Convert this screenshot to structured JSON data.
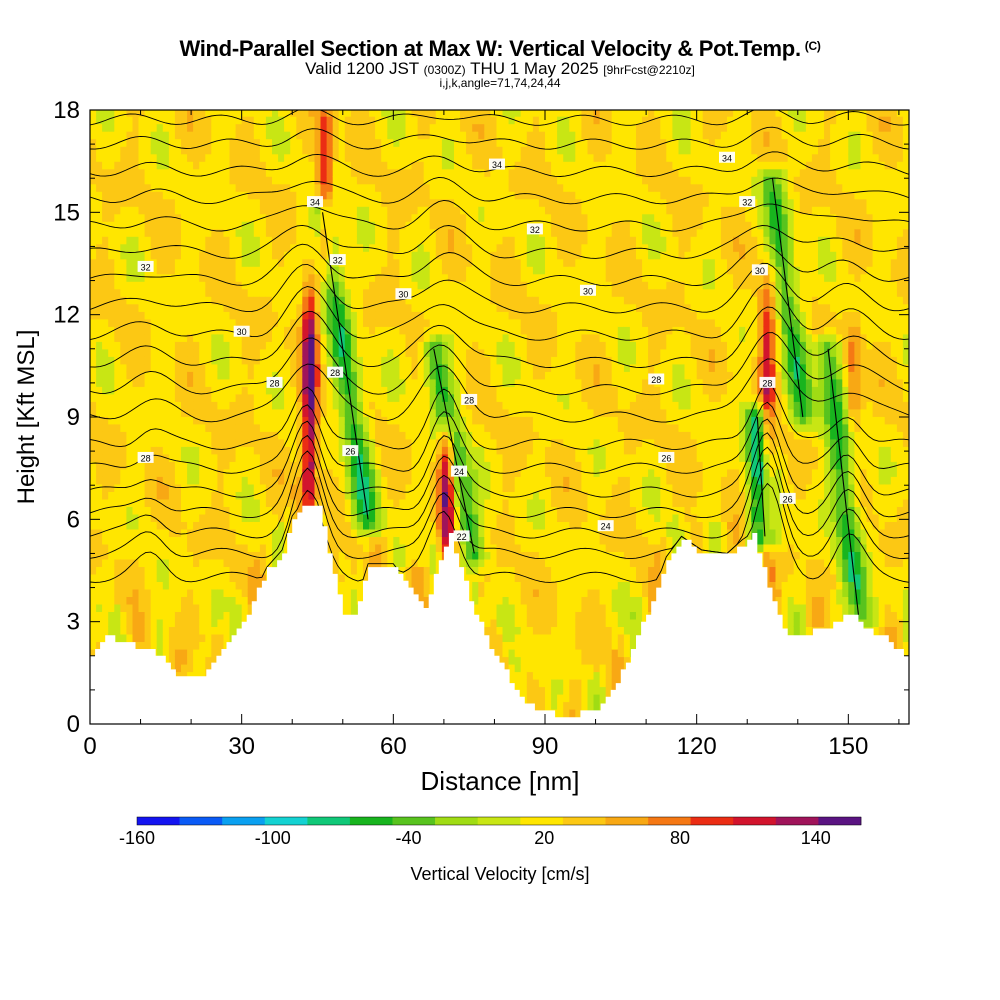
{
  "header": {
    "title": "Wind-Parallel Section at Max W: Vertical Velocity & Pot.Temp.",
    "title_tag": "(C)",
    "valid_prefix": "Valid 1200 JST",
    "valid_utc": "(0300Z)",
    "valid_date": "THU 1 May 2025",
    "forecast_info": "[9hrFcst@2210z]",
    "indices": "i,j,k,angle=71,74,24,44"
  },
  "chart_data": {
    "type": "heatmap",
    "xlabel": "Distance [nm]",
    "ylabel": "Height [Kft MSL]",
    "xlim": [
      0,
      162
    ],
    "ylim": [
      0,
      18
    ],
    "xticks": [
      0,
      30,
      60,
      90,
      120,
      150
    ],
    "yticks": [
      0,
      3,
      6,
      9,
      12,
      15,
      18
    ],
    "colorbar": {
      "label": "Vertical Velocity [cm/s]",
      "tick_labels": [
        "-160",
        "-100",
        "-40",
        "20",
        "80",
        "140"
      ],
      "tick_values": [
        -160,
        -100,
        -40,
        20,
        80,
        140
      ],
      "range": [
        -160,
        160
      ],
      "colors": [
        "#1414f0",
        "#0a5af5",
        "#0aa0f0",
        "#14d2d2",
        "#10c878",
        "#18b41e",
        "#58c31e",
        "#a0dc14",
        "#c8e614",
        "#ffe600",
        "#fcc814",
        "#f8a814",
        "#f57814",
        "#eb2d14",
        "#d2142d",
        "#a0145a",
        "#5a1482"
      ]
    },
    "terrain_heights_kft": [
      [
        0,
        2.0
      ],
      [
        3,
        2.6
      ],
      [
        14,
        2.0
      ],
      [
        17,
        1.3
      ],
      [
        22,
        1.3
      ],
      [
        26,
        2.2
      ],
      [
        30,
        3.0
      ],
      [
        35,
        4.5
      ],
      [
        38,
        5.0
      ],
      [
        40,
        6.0
      ],
      [
        42,
        6.4
      ],
      [
        45,
        6.4
      ],
      [
        47,
        5.0
      ],
      [
        50,
        3.3
      ],
      [
        52,
        3.2
      ],
      [
        55,
        4.6
      ],
      [
        60,
        4.6
      ],
      [
        64,
        3.8
      ],
      [
        66,
        3.4
      ],
      [
        69,
        4.8
      ],
      [
        71,
        5.6
      ],
      [
        73,
        4.6
      ],
      [
        76,
        3.2
      ],
      [
        80,
        2.0
      ],
      [
        84,
        1.0
      ],
      [
        88,
        0.4
      ],
      [
        92,
        0.3
      ],
      [
        96,
        0.3
      ],
      [
        100,
        0.4
      ],
      [
        104,
        1.2
      ],
      [
        108,
        2.6
      ],
      [
        111,
        3.6
      ],
      [
        114,
        4.8
      ],
      [
        117,
        5.4
      ],
      [
        121,
        5.0
      ],
      [
        126,
        4.9
      ],
      [
        129,
        5.3
      ],
      [
        131,
        5.5
      ],
      [
        133,
        4.6
      ],
      [
        135,
        3.6
      ],
      [
        137,
        2.7
      ],
      [
        141,
        2.6
      ],
      [
        145,
        2.8
      ],
      [
        150,
        3.2
      ],
      [
        154,
        2.8
      ],
      [
        158,
        2.4
      ],
      [
        162,
        1.8
      ]
    ],
    "updraft_cores": [
      {
        "x": 43.5,
        "y_range": [
          6.2,
          12.5
        ],
        "max_w": 140
      },
      {
        "x": 46.5,
        "y_range": [
          13.5,
          18
        ],
        "max_w": 100
      },
      {
        "x": 70.5,
        "y_range": [
          5.0,
          8.5
        ],
        "max_w": 140
      },
      {
        "x": 134,
        "y_range": [
          5.5,
          12.5
        ],
        "max_w": 110
      },
      {
        "x": 151,
        "y_range": [
          9.0,
          11.5
        ],
        "max_w": 80
      }
    ],
    "downdraft_bands": [
      {
        "from": [
          46,
          15
        ],
        "to": [
          55,
          6
        ],
        "min_w": -70
      },
      {
        "from": [
          68,
          11
        ],
        "to": [
          76,
          5
        ],
        "min_w": -70
      },
      {
        "from": [
          132,
          9
        ],
        "to": [
          133.5,
          5.5
        ],
        "min_w": -100
      },
      {
        "from": [
          135,
          16
        ],
        "to": [
          141,
          9
        ],
        "min_w": -60
      },
      {
        "from": [
          146,
          11
        ],
        "to": [
          152,
          3.2
        ],
        "min_w": -70
      }
    ],
    "isentrope_label_values": [
      "22",
      "24",
      "26",
      "28",
      "30",
      "32",
      "34"
    ],
    "isentrope_labels": [
      {
        "text": "32",
        "x": 11,
        "y": 13.4
      },
      {
        "text": "30",
        "x": 30,
        "y": 11.5
      },
      {
        "text": "28",
        "x": 36.5,
        "y": 10.0
      },
      {
        "text": "28",
        "x": 11,
        "y": 7.8
      },
      {
        "text": "34",
        "x": 44.5,
        "y": 15.3
      },
      {
        "text": "32",
        "x": 49,
        "y": 13.6
      },
      {
        "text": "30",
        "x": 62,
        "y": 12.6
      },
      {
        "text": "28",
        "x": 48.5,
        "y": 10.3
      },
      {
        "text": "26",
        "x": 51.5,
        "y": 8.0
      },
      {
        "text": "34",
        "x": 80.5,
        "y": 16.4
      },
      {
        "text": "32",
        "x": 88,
        "y": 14.5
      },
      {
        "text": "30",
        "x": 98.5,
        "y": 12.7
      },
      {
        "text": "28",
        "x": 75,
        "y": 9.5
      },
      {
        "text": "28",
        "x": 112,
        "y": 10.1
      },
      {
        "text": "24",
        "x": 73,
        "y": 7.4
      },
      {
        "text": "22",
        "x": 73.5,
        "y": 5.5
      },
      {
        "text": "26",
        "x": 114,
        "y": 7.8
      },
      {
        "text": "24",
        "x": 102,
        "y": 5.8
      },
      {
        "text": "34",
        "x": 126,
        "y": 16.6
      },
      {
        "text": "32",
        "x": 130,
        "y": 15.3
      },
      {
        "text": "30",
        "x": 132.5,
        "y": 13.3
      },
      {
        "text": "28",
        "x": 134,
        "y": 10.0
      },
      {
        "text": "26",
        "x": 138,
        "y": 6.6
      }
    ]
  }
}
